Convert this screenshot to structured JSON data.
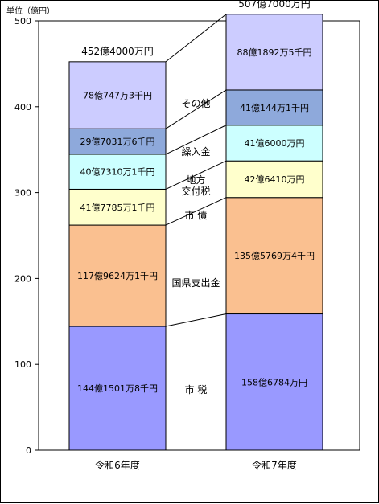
{
  "unit_label": "単位（億円）",
  "chart_data": {
    "type": "bar",
    "stacked": true,
    "categories": [
      "令和6年度",
      "令和7年度"
    ],
    "ylim": [
      0,
      500
    ],
    "yticks": [
      0,
      100,
      200,
      300,
      400,
      500
    ],
    "grid": false,
    "totals": [
      "452億4000万円",
      "507億7000万円"
    ],
    "series": [
      {
        "name": "市 税",
        "color": "#9999ff",
        "values": [
          144.15,
          158.68
        ],
        "labels": [
          "144億1501万8千円",
          "158億6784万円"
        ]
      },
      {
        "name": "国県支出金",
        "color": "#fac090",
        "values": [
          117.96,
          135.58
        ],
        "labels": [
          "117億9624万1千円",
          "135億5769万4千円"
        ]
      },
      {
        "name": "市 債",
        "color": "#ffffcc",
        "values": [
          41.78,
          42.64
        ],
        "labels": [
          "41億7785万1千円",
          "42億6410万円"
        ]
      },
      {
        "name": "地方\n交付税",
        "color": "#ccffff",
        "values": [
          40.73,
          41.6
        ],
        "labels": [
          "40億7310万1千円",
          "41億6000万円"
        ]
      },
      {
        "name": "繰入金",
        "color": "#8ea9db",
        "values": [
          29.7,
          41.01
        ],
        "labels": [
          "29億7031万6千円",
          "41億144万1千円"
        ]
      },
      {
        "name": "その他",
        "color": "#ccccff",
        "values": [
          78.07,
          88.19
        ],
        "labels": [
          "78億747万3千円",
          "88億1892万5千円"
        ]
      }
    ]
  }
}
